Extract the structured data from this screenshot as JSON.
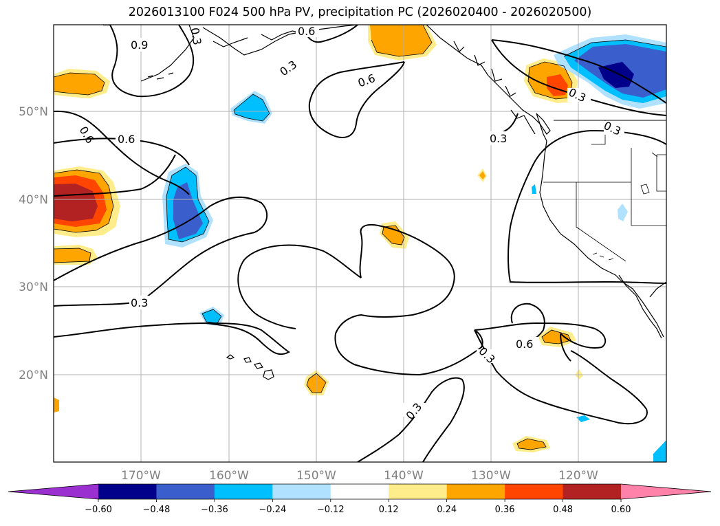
{
  "title": "2026013100 F024 500 hPa PV, precipitation PC (2026020400 - 2026020500)",
  "lat_labels": [
    "50°N",
    "40°N",
    "30°N",
    "20°N"
  ],
  "lon_labels": [
    "170°W",
    "160°W",
    "150°W",
    "140°W",
    "130°W",
    "120°W"
  ],
  "contour_labels": [
    "0.9",
    "0.6",
    "0.3",
    "0.6",
    "0.6",
    "0.6",
    "0.3",
    "0.3",
    "0.3",
    "0.3",
    "0.3",
    "0.6",
    "0.3",
    "0.3"
  ],
  "colorbar": {
    "ticks": [
      "−0.60",
      "−0.48",
      "−0.36",
      "−0.24",
      "−0.12",
      "0.12",
      "0.24",
      "0.36",
      "0.48",
      "0.60"
    ],
    "colors": [
      "#9b30d0",
      "#00008b",
      "#3a5fcd",
      "#00bfff",
      "#b0e2ff",
      "#ffffff",
      "#ffec8b",
      "#ffa500",
      "#ff4500",
      "#b22222",
      "#ff82ab"
    ]
  },
  "colors": {
    "coast": "#000000",
    "grid": "#b0b0b0",
    "contour": "#000000",
    "label": "#808080"
  }
}
